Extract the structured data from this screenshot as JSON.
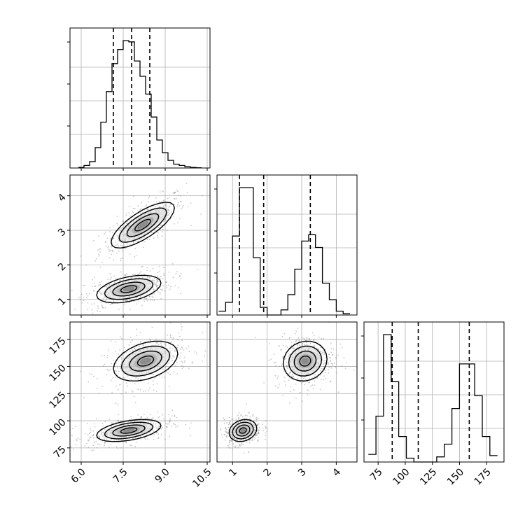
{
  "chart_data": {
    "type": "corner",
    "description": "Corner plot of three parameters",
    "grid": true,
    "colors": {
      "line": "#000000",
      "grid": "#b0b0b0",
      "points": "#808080"
    },
    "parameters": [
      {
        "range": [
          5.6,
          10.6
        ],
        "ticks": [
          6.0,
          7.5,
          9.0,
          10.5
        ],
        "tick_labels": [
          "6.0",
          "7.5",
          "9.0",
          "10.5"
        ],
        "quantiles": [
          7.15,
          7.8,
          8.45
        ]
      },
      {
        "range": [
          0.55,
          4.6
        ],
        "ticks": [
          1,
          2,
          3,
          4
        ],
        "tick_labels": [
          "1",
          "2",
          "3",
          "4"
        ],
        "quantiles": [
          1.2,
          1.9,
          3.25
        ]
      },
      {
        "range": [
          62,
          191
        ],
        "ticks": [
          75,
          100,
          125,
          150,
          175
        ],
        "tick_labels": [
          "75",
          "100",
          "125",
          "150",
          "175"
        ],
        "quantiles": [
          88,
          112,
          159
        ]
      }
    ],
    "histograms": [
      {
        "param": 0,
        "bin_edges": [
          5.9,
          6.1,
          6.3,
          6.5,
          6.7,
          6.9,
          7.1,
          7.3,
          7.5,
          7.7,
          7.9,
          8.1,
          8.3,
          8.5,
          8.7,
          8.9,
          9.1,
          9.3,
          9.5,
          9.7,
          9.9,
          10.1,
          10.3
        ],
        "counts": [
          0.5,
          2,
          5,
          16,
          36,
          60,
          82,
          93,
          100,
          99,
          84,
          72,
          58,
          40,
          22,
          12,
          6,
          3,
          2,
          1,
          0.5,
          0.2
        ]
      },
      {
        "param": 1,
        "bin_edges": [
          0.6,
          0.8,
          1.0,
          1.2,
          1.4,
          1.6,
          1.8,
          2.0,
          2.2,
          2.4,
          2.6,
          2.8,
          3.0,
          3.2,
          3.4,
          3.6,
          3.8,
          4.0,
          4.2,
          4.4
        ],
        "counts": [
          3,
          10,
          62,
          100,
          100,
          45,
          6,
          0,
          0,
          4,
          16,
          36,
          58,
          63,
          53,
          25,
          12,
          3,
          1
        ]
      },
      {
        "param": 2,
        "bin_edges": [
          66,
          73,
          80,
          87,
          94,
          101,
          108,
          115,
          122,
          129,
          136,
          143,
          150,
          157,
          164,
          171,
          178,
          185
        ],
        "counts": [
          6,
          36,
          100,
          63,
          20,
          3,
          0,
          0,
          0,
          4,
          14,
          42,
          77,
          77,
          52,
          20,
          5
        ]
      }
    ],
    "scatter_panels": [
      {
        "x_param": 0,
        "y_param": 1,
        "clusters": [
          {
            "center": [
              8.2,
              3.15
            ],
            "cov": [
              [
                0.32,
                0.14
              ],
              [
                0.14,
                0.11
              ]
            ]
          },
          {
            "center": [
              7.7,
              1.3
            ],
            "cov": [
              [
                0.33,
                0.05
              ],
              [
                0.05,
                0.04
              ]
            ]
          }
        ]
      },
      {
        "x_param": 0,
        "y_param": 2,
        "clusters": [
          {
            "center": [
              8.3,
              155
            ],
            "cov": [
              [
                0.33,
                2.0
              ],
              [
                2.0,
                85
              ]
            ]
          },
          {
            "center": [
              7.7,
              91
            ],
            "cov": [
              [
                0.33,
                1.3
              ],
              [
                1.3,
                26
              ]
            ]
          }
        ]
      },
      {
        "x_param": 1,
        "y_param": 2,
        "clusters": [
          {
            "center": [
              3.1,
              155
            ],
            "cov": [
              [
                0.1,
                0.3
              ],
              [
                0.3,
                85
              ]
            ]
          },
          {
            "center": [
              1.3,
              91
            ],
            "cov": [
              [
                0.04,
                0.2
              ],
              [
                0.2,
                26
              ]
            ]
          }
        ]
      }
    ],
    "contour_levels_sigma": [
      0.5,
      1.0,
      1.5,
      2.0
    ]
  }
}
